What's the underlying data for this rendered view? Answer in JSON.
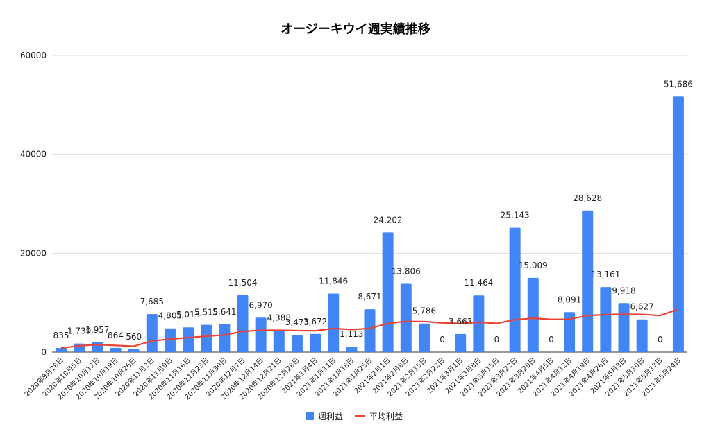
{
  "chart_data": {
    "type": "bar+line",
    "title": "オージーキウイ週実績推移",
    "xlabel": "",
    "ylabel": "",
    "ylim": [
      0,
      60000
    ],
    "yticks": [
      "0",
      "20000",
      "40000",
      "60000"
    ],
    "grid": true,
    "legend_position": "bottom",
    "categories": [
      "2020年9月28日",
      "2020年10月5日",
      "2020年10月12日",
      "2020年10月19日",
      "2020年10月26日",
      "2020年11月2日",
      "2020年11月9日",
      "2020年11月16日",
      "2020年11月23日",
      "2020年11月30日",
      "2020年12月7日",
      "2020年12月14日",
      "2020年12月21日",
      "2020年12月28日",
      "2021年1月4日",
      "2021年1月11日",
      "2021年1月18日",
      "2021年1月25日",
      "2021年2月1日",
      "2021年2月8日",
      "2021年2月15日",
      "2021年2月22日",
      "2021年3月1日",
      "2021年3月8日",
      "2021年3月15日",
      "2021年3月22日",
      "2021年3月29日",
      "2021年4月5日",
      "2021年4月12日",
      "2021年4月19日",
      "2021年4月26日",
      "2021年5月3日",
      "2021年5月10日",
      "2021年5月17日",
      "2021年5月24日"
    ],
    "series": [
      {
        "name": "週利益",
        "type": "bar",
        "color": "#4285f4",
        "values": [
          835,
          1739,
          1957,
          864,
          560,
          7685,
          4805,
          5013,
          5515,
          5641,
          11504,
          6970,
          4388,
          3473,
          3672,
          11846,
          1113,
          8671,
          24202,
          13806,
          5786,
          0,
          3663,
          11464,
          0,
          25143,
          15009,
          0,
          8091,
          28628,
          13161,
          9918,
          6627,
          0,
          51686
        ],
        "data_labels": [
          "835",
          "1,739",
          "1,957",
          "864",
          "560",
          "7,685",
          "4,805",
          "5,013",
          "5,515",
          "5,641",
          "11,504",
          "6,970",
          "4,388",
          "3,473",
          "3,672",
          "11,846",
          "1,113",
          "8,671",
          "24,202",
          "13,806",
          "5,786",
          "0",
          "3,663",
          "11,464",
          "0",
          "25,143",
          "15,009",
          "0",
          "8,091",
          "28,628",
          "13,161",
          "9,918",
          "6,627",
          "0",
          "51,686"
        ]
      },
      {
        "name": "平均利益",
        "type": "line",
        "color": "#ea4335",
        "values": [
          835,
          1287,
          1510,
          1349,
          1191,
          2273,
          2635,
          2932,
          3219,
          3461,
          4193,
          4424,
          4421,
          4353,
          4308,
          4779,
          4564,
          4792,
          5813,
          6213,
          6193,
          5911,
          5813,
          6049,
          5807,
          6551,
          6864,
          6619,
          6670,
          7401,
          7587,
          7660,
          7629,
          7404,
          8670
        ]
      }
    ]
  }
}
